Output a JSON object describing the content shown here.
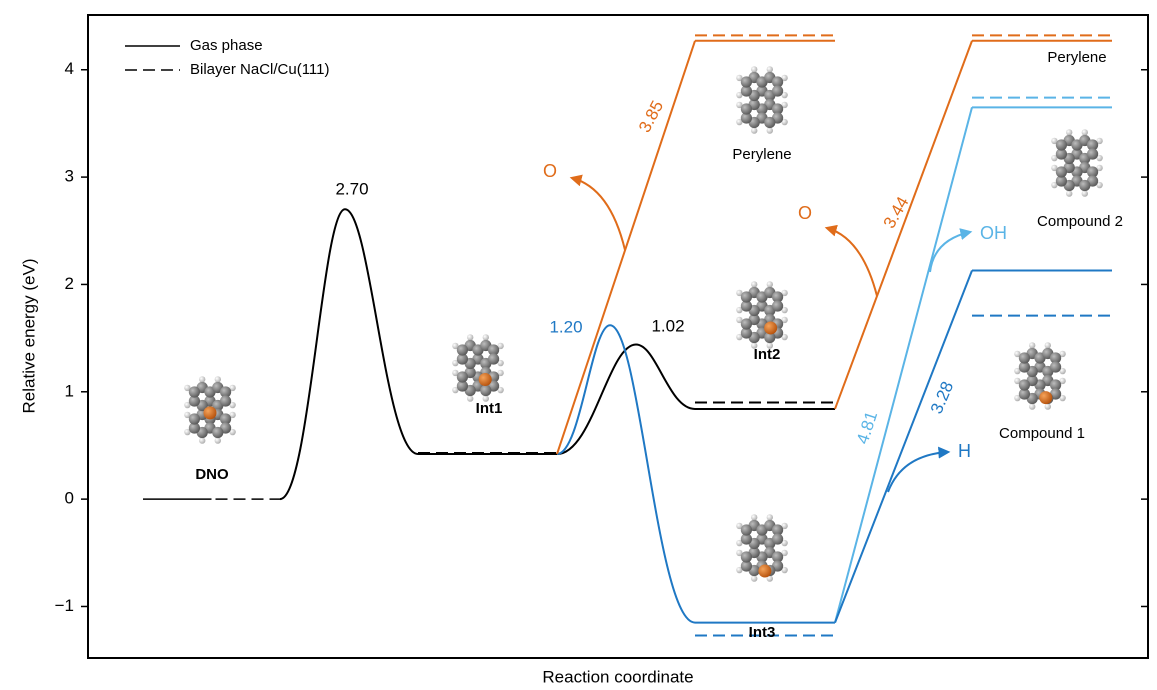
{
  "chart_data": {
    "type": "energy",
    "ylabel": "Relative energy (eV)",
    "xlabel": "Reaction coordinate",
    "ylim": [
      -1.48,
      4.51
    ],
    "yticks": [
      {
        "value": -1,
        "label": "−1"
      },
      0,
      1,
      2,
      3,
      4
    ],
    "legend": [
      {
        "label": "Gas phase",
        "style": "solid"
      },
      {
        "label": "Bilayer NaCl/Cu(111)",
        "style": "dashed"
      }
    ],
    "states": [
      {
        "name": "DNO",
        "bold": true,
        "color": "#000000",
        "gas": 0,
        "bilayer": 0
      },
      {
        "name": "Int1",
        "bold": true,
        "color": "#000000",
        "gas": 0.42,
        "bilayer": 0.43
      },
      {
        "name": "Int2",
        "bold": true,
        "color": "#000000",
        "gas": 0.84,
        "bilayer": 0.9
      },
      {
        "name": "Int3",
        "bold": true,
        "color": "#1f78c4",
        "gas": -1.15,
        "bilayer": -1.27
      },
      {
        "name": "Perylene",
        "bold": false,
        "color": "#e06c1a",
        "gas": 4.27,
        "bilayer": 4.32
      },
      {
        "name": "Perylene",
        "bold": false,
        "color": "#e06c1a",
        "gas": 4.27,
        "bilayer": 4.32
      },
      {
        "name": "Compound 2",
        "bold": false,
        "color": "#5ab4e6",
        "gas": 3.65,
        "bilayer": 3.74
      },
      {
        "name": "Compound 1",
        "bold": false,
        "color": "#1f78c4",
        "gas": 2.13,
        "bilayer": 1.71
      }
    ],
    "transitions": [
      {
        "from": 0,
        "to": 1,
        "color": "#000000",
        "peak": 2.7,
        "label": "2.70"
      },
      {
        "from": 1,
        "to": 2,
        "color": "#000000",
        "peak": 1.44,
        "label": "1.02"
      },
      {
        "from": 1,
        "to": 3,
        "color": "#1f78c4",
        "peak": 1.62,
        "label": "1.20"
      },
      {
        "from": 1,
        "to": 4,
        "color": "#e06c1a",
        "label": "3.85",
        "product": "O"
      },
      {
        "from": 2,
        "to": 5,
        "color": "#e06c1a",
        "label": "3.44",
        "product": "O"
      },
      {
        "from": 3,
        "to": 6,
        "color": "#5ab4e6",
        "label": "4.81",
        "product": "OH"
      },
      {
        "from": 3,
        "to": 7,
        "color": "#1f78c4",
        "label": "3.28",
        "product": "H"
      }
    ]
  }
}
